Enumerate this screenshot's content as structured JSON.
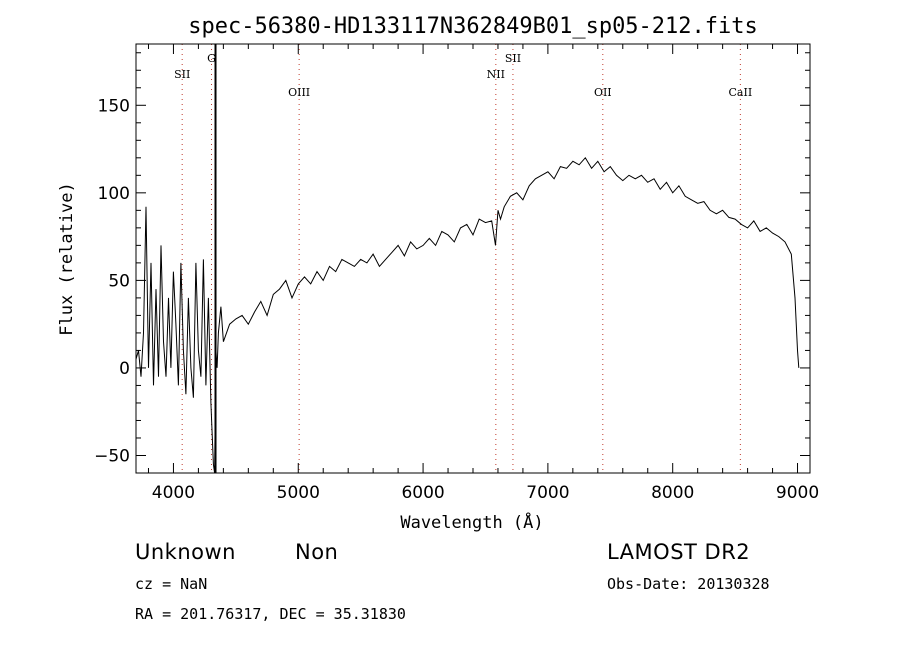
{
  "chart_data": {
    "type": "line",
    "title": "spec-56380-HD133117N362849B01_sp05-212.fits",
    "xlabel": "Wavelength (Å)",
    "ylabel": "Flux (relative)",
    "xlim": [
      3700,
      9100
    ],
    "ylim": [
      -60,
      185
    ],
    "x_ticks": [
      4000,
      5000,
      6000,
      7000,
      8000,
      9000
    ],
    "y_ticks": [
      -50,
      0,
      50,
      100,
      150
    ],
    "x_tick_labels": [
      "4000",
      "5000",
      "6000",
      "7000",
      "8000",
      "9000"
    ],
    "y_tick_labels": [
      "−50",
      "0",
      "50",
      "100",
      "150"
    ],
    "grid": false,
    "series": [
      {
        "x": [
          3700,
          3720,
          3740,
          3760,
          3780,
          3800,
          3820,
          3840,
          3860,
          3880,
          3900,
          3920,
          3940,
          3960,
          3980,
          4000,
          4020,
          4040,
          4060,
          4080,
          4100,
          4120,
          4140,
          4160,
          4180,
          4200,
          4220,
          4240,
          4260,
          4280,
          4300,
          4320,
          4330,
          4340,
          4350,
          4360,
          4380,
          4400,
          4450,
          4500,
          4550,
          4600,
          4650,
          4700,
          4750,
          4800,
          4850,
          4900,
          4950,
          5000,
          5050,
          5100,
          5150,
          5200,
          5250,
          5300,
          5350,
          5400,
          5450,
          5500,
          5550,
          5600,
          5650,
          5700,
          5750,
          5800,
          5850,
          5900,
          5950,
          6000,
          6050,
          6100,
          6150,
          6200,
          6250,
          6300,
          6350,
          6400,
          6450,
          6500,
          6550,
          6580,
          6600,
          6620,
          6650,
          6700,
          6750,
          6800,
          6850,
          6900,
          6950,
          7000,
          7050,
          7100,
          7150,
          7200,
          7250,
          7300,
          7350,
          7400,
          7450,
          7500,
          7550,
          7600,
          7650,
          7700,
          7750,
          7800,
          7850,
          7900,
          7950,
          8000,
          8050,
          8100,
          8150,
          8200,
          8250,
          8300,
          8350,
          8400,
          8450,
          8500,
          8550,
          8600,
          8650,
          8700,
          8750,
          8800,
          8850,
          8900,
          8950,
          8980,
          9000,
          9010
        ],
        "y": [
          5,
          10,
          -5,
          20,
          92,
          0,
          60,
          -10,
          45,
          -5,
          70,
          15,
          -5,
          40,
          0,
          55,
          25,
          -10,
          60,
          10,
          -15,
          40,
          0,
          -17,
          60,
          10,
          -5,
          62,
          -10,
          40,
          -20,
          -55,
          -60,
          10,
          0,
          20,
          35,
          15,
          25,
          28,
          30,
          25,
          32,
          38,
          30,
          42,
          45,
          50,
          40,
          48,
          52,
          48,
          55,
          50,
          58,
          55,
          62,
          60,
          58,
          62,
          60,
          65,
          58,
          62,
          66,
          70,
          64,
          72,
          68,
          70,
          74,
          70,
          78,
          76,
          72,
          80,
          82,
          76,
          85,
          83,
          84,
          70,
          90,
          85,
          92,
          98,
          100,
          96,
          104,
          108,
          110,
          112,
          108,
          115,
          114,
          118,
          116,
          120,
          114,
          118,
          112,
          115,
          110,
          107,
          110,
          108,
          110,
          106,
          108,
          102,
          106,
          100,
          104,
          98,
          96,
          94,
          95,
          90,
          88,
          90,
          86,
          85,
          82,
          80,
          84,
          78,
          80,
          77,
          75,
          72,
          65,
          40,
          10,
          0
        ]
      }
    ],
    "annotations": [
      {
        "label": "SII",
        "x": 4070,
        "dotted": true
      },
      {
        "label": "G",
        "x": 4305,
        "dotted": true
      },
      {
        "label": "OIII",
        "x": 5007,
        "dotted": true
      },
      {
        "label": "NII",
        "x": 6583,
        "dotted": true
      },
      {
        "label": "SII",
        "x": 6720,
        "dotted": true
      },
      {
        "label": "OII",
        "x": 7440,
        "dotted": true
      },
      {
        "label": "CaII",
        "x": 8542,
        "dotted": true
      }
    ]
  },
  "info": {
    "class_label": "Unknown",
    "subclass_label": "Non",
    "survey": "LAMOST DR2",
    "cz": "cz = NaN",
    "obs_date": "Obs-Date: 20130328",
    "coords": "RA = 201.76317, DEC =  35.31830"
  }
}
